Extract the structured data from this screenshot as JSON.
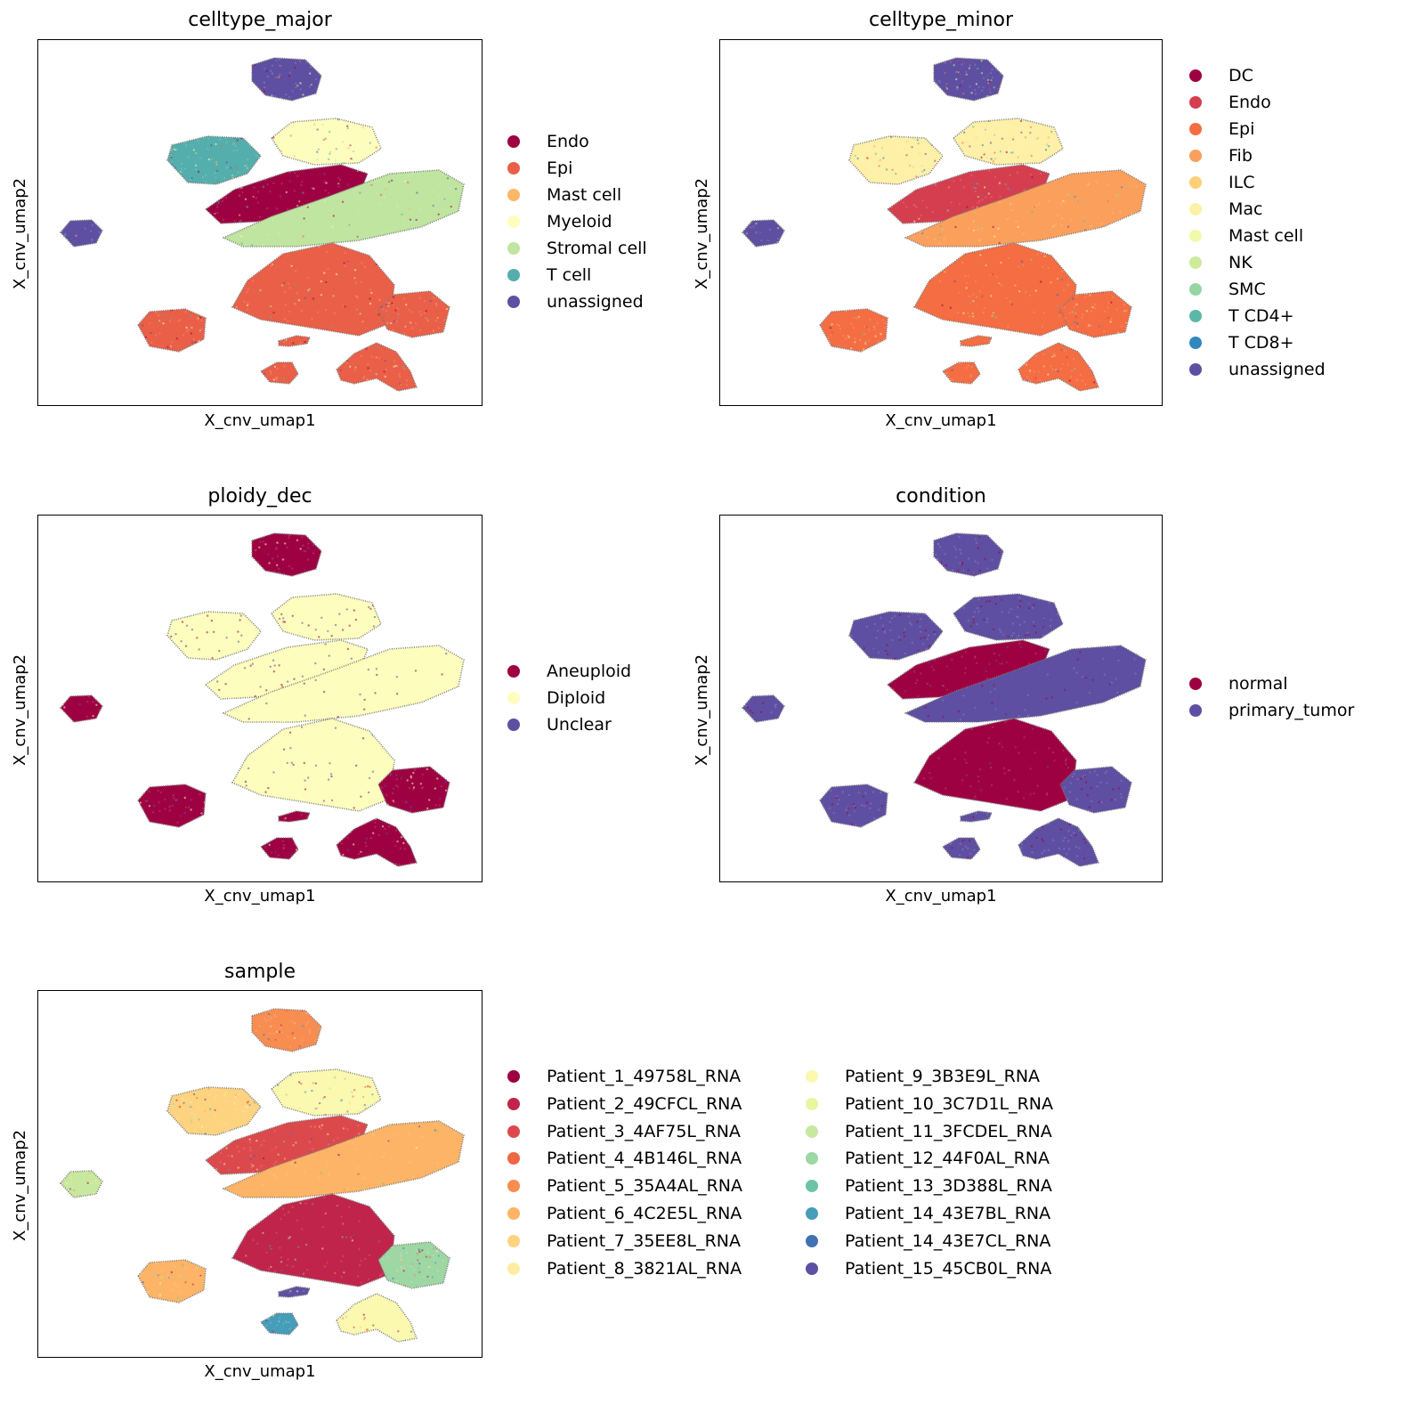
{
  "chart_data": [
    {
      "type": "scatter",
      "title": "celltype_major",
      "xlabel": "X_cnv_umap1",
      "ylabel": "X_cnv_umap2",
      "grid": false,
      "legend_position": "right",
      "categories": [
        "Endo",
        "Epi",
        "Mast cell",
        "Myeloid",
        "Stromal cell",
        "T cell",
        "unassigned"
      ],
      "colors": [
        "#9e0142",
        "#ea5f47",
        "#fdb768",
        "#fdfdbd",
        "#bfe5a0",
        "#54aeac",
        "#5e4fa2"
      ],
      "island_colors": {
        "top": "unassigned",
        "upper_left": "T cell",
        "upper_middle": "Myeloid",
        "middle_band": "Endo",
        "right_band": "Stromal cell",
        "lower_big": "Epi",
        "lower_right": "Epi",
        "left_small": "unassigned",
        "bottom_left": "Epi",
        "bottom_small": "Epi",
        "bottom_right": "Epi",
        "bottom_mid_small": "Epi"
      }
    },
    {
      "type": "scatter",
      "title": "celltype_minor",
      "xlabel": "X_cnv_umap1",
      "ylabel": "X_cnv_umap2",
      "grid": false,
      "legend_position": "right",
      "categories": [
        "DC",
        "Endo",
        "Epi",
        "Fib",
        "ILC",
        "Mac",
        "Mast cell",
        "NK",
        "SMC",
        "T CD4+",
        "T CD8+",
        "unassigned"
      ],
      "colors": [
        "#9e0142",
        "#d53e4f",
        "#f46d43",
        "#fba05c",
        "#fdcf77",
        "#fef0a6",
        "#f1f9ac",
        "#cdeb9b",
        "#96d4a4",
        "#5bb8a8",
        "#3287bd",
        "#5e4fa2"
      ],
      "island_colors": {
        "top": "unassigned",
        "upper_left": "Mac",
        "upper_middle": "Mac",
        "middle_band": "Endo",
        "right_band": "Fib",
        "lower_big": "Epi",
        "lower_right": "Epi",
        "left_small": "unassigned",
        "bottom_left": "Epi",
        "bottom_small": "Epi",
        "bottom_right": "Epi",
        "bottom_mid_small": "Epi"
      }
    },
    {
      "type": "scatter",
      "title": "ploidy_dec",
      "xlabel": "X_cnv_umap1",
      "ylabel": "X_cnv_umap2",
      "grid": false,
      "legend_position": "right",
      "categories": [
        "Aneuploid",
        "Diploid",
        "Unclear"
      ],
      "colors": [
        "#9e0142",
        "#fdfdbd",
        "#5e4fa2"
      ],
      "island_colors": {
        "top": "Aneuploid",
        "upper_left": "Diploid",
        "upper_middle": "Diploid",
        "middle_band": "Diploid",
        "right_band": "Diploid",
        "lower_big": "Diploid",
        "lower_right": "Aneuploid",
        "left_small": "Aneuploid",
        "bottom_left": "Aneuploid",
        "bottom_small": "Aneuploid",
        "bottom_right": "Aneuploid",
        "bottom_mid_small": "Aneuploid"
      }
    },
    {
      "type": "scatter",
      "title": "condition",
      "xlabel": "X_cnv_umap1",
      "ylabel": "X_cnv_umap2",
      "grid": false,
      "legend_position": "right",
      "categories": [
        "normal",
        "primary_tumor"
      ],
      "colors": [
        "#9e0142",
        "#5e4fa2"
      ],
      "island_colors": {
        "top": "primary_tumor",
        "upper_left": "primary_tumor",
        "upper_middle": "primary_tumor",
        "middle_band": "normal",
        "right_band": "primary_tumor",
        "lower_big": "normal",
        "lower_right": "primary_tumor",
        "left_small": "primary_tumor",
        "bottom_left": "primary_tumor",
        "bottom_small": "primary_tumor",
        "bottom_right": "primary_tumor",
        "bottom_mid_small": "primary_tumor"
      }
    },
    {
      "type": "scatter",
      "title": "sample",
      "xlabel": "X_cnv_umap1",
      "ylabel": "X_cnv_umap2",
      "grid": false,
      "legend_position": "right",
      "legend_columns": 2,
      "categories": [
        "Patient_1_49758L_RNA",
        "Patient_2_49CFCL_RNA",
        "Patient_3_4AF75L_RNA",
        "Patient_4_4B146L_RNA",
        "Patient_5_35A4AL_RNA",
        "Patient_6_4C2E5L_RNA",
        "Patient_7_35EE8L_RNA",
        "Patient_8_3821AL_RNA",
        "Patient_9_3B3E9L_RNA",
        "Patient_10_3C7D1L_RNA",
        "Patient_11_3FCDEL_RNA",
        "Patient_12_44F0AL_RNA",
        "Patient_13_3D388L_RNA",
        "Patient_14_43E7BL_RNA",
        "Patient_14_43E7CL_RNA",
        "Patient_15_45CB0L_RNA"
      ],
      "colors": [
        "#9e0142",
        "#c0244a",
        "#dc494c",
        "#f06744",
        "#f88d51",
        "#fdb466",
        "#fdd380",
        "#feeda1",
        "#fbf8b0",
        "#e9f69d",
        "#c7e89e",
        "#9dd7a4",
        "#6dc4a4",
        "#459dba",
        "#4272b2",
        "#5e4fa2"
      ],
      "island_colors": {
        "top": "Patient_5_35A4AL_RNA",
        "upper_left": "Patient_7_35EE8L_RNA",
        "upper_middle": "Patient_9_3B3E9L_RNA",
        "middle_band": "Patient_3_4AF75L_RNA",
        "right_band": "Patient_6_4C2E5L_RNA",
        "lower_big": "Patient_2_49CFCL_RNA",
        "lower_right": "Patient_12_44F0AL_RNA",
        "left_small": "Patient_11_3FCDEL_RNA",
        "bottom_left": "Patient_6_4C2E5L_RNA",
        "bottom_small": "Patient_14_43E7BL_RNA",
        "bottom_right": "Patient_9_3B3E9L_RNA",
        "bottom_mid_small": "Patient_15_45CB0L_RNA"
      }
    }
  ]
}
